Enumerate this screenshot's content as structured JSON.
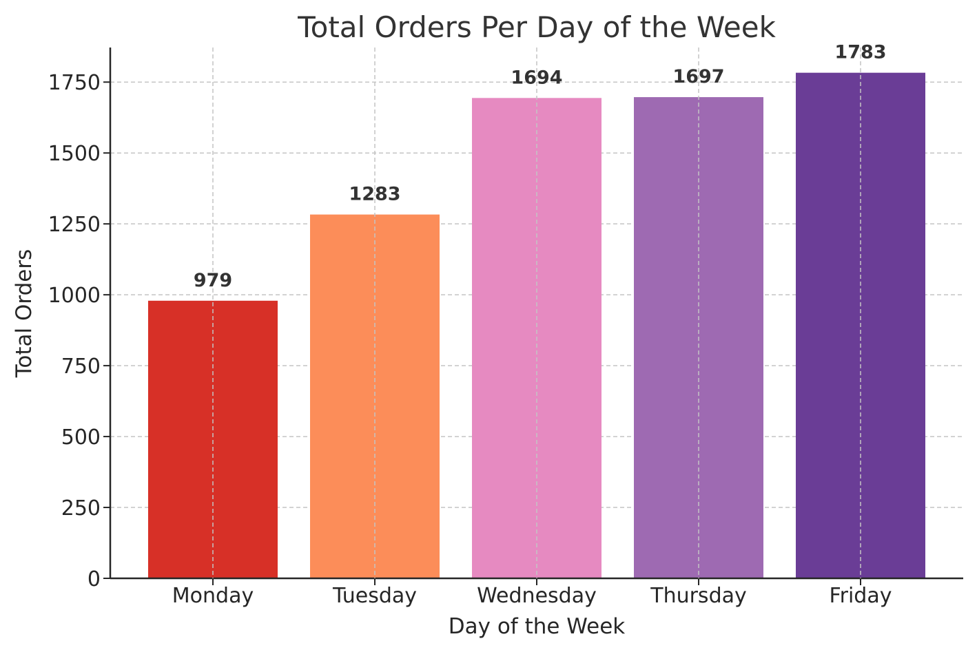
{
  "chart_data": {
    "type": "bar",
    "title": "Total Orders Per Day of the Week",
    "xlabel": "Day of the Week",
    "ylabel": "Total Orders",
    "categories": [
      "Monday",
      "Tuesday",
      "Wednesday",
      "Thursday",
      "Friday"
    ],
    "values": [
      979,
      1283,
      1694,
      1697,
      1783
    ],
    "data_labels": [
      "979",
      "1283",
      "1694",
      "1697",
      "1783"
    ],
    "colors": [
      "#d73027",
      "#fc8d59",
      "#e68ac1",
      "#9e6ab2",
      "#6a3d96"
    ],
    "ylim": [
      0,
      1872
    ],
    "yticks": [
      0,
      250,
      500,
      750,
      1000,
      1250,
      1500,
      1750
    ],
    "ytick_labels": [
      "0",
      "250",
      "500",
      "750",
      "1000",
      "1250",
      "1500",
      "1750"
    ],
    "grid": true
  }
}
